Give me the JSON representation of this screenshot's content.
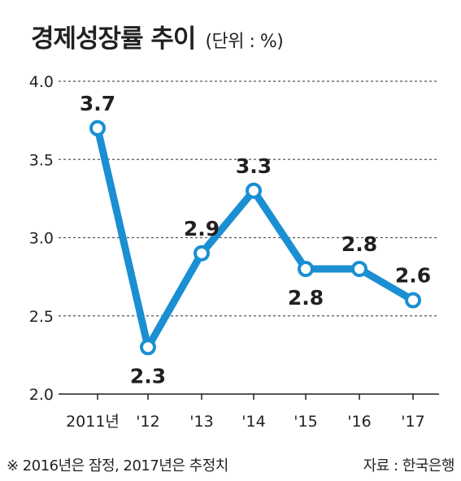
{
  "header": {
    "title": "경제성장률 추이",
    "unit": "(단위 : %)"
  },
  "footer": {
    "note": "※ 2016년은 잠정, 2017년은 추정치",
    "source": "자료 : 한국은행"
  },
  "colors": {
    "line": "#1a8fd2",
    "marker_fill": "#ffffff",
    "grid": "#555555",
    "text": "#231f20"
  },
  "chart_data": {
    "type": "line",
    "title": "경제성장률 추이",
    "ylabel": "",
    "xlabel": "",
    "categories": [
      "2011년",
      "'12",
      "'13",
      "'14",
      "'15",
      "'16",
      "'17"
    ],
    "series": [
      {
        "values": [
          3.7,
          2.3,
          2.9,
          3.3,
          2.8,
          2.8,
          2.6
        ]
      }
    ],
    "data_labels": [
      "3.7",
      "2.3",
      "2.9",
      "3.3",
      "2.8",
      "2.8",
      "2.6"
    ],
    "ylim": [
      2.0,
      4.0
    ],
    "yticks": [
      2.0,
      2.5,
      3.0,
      3.5,
      4.0
    ],
    "ytick_labels": [
      "2.0",
      "2.5",
      "3.0",
      "3.5",
      "4.0"
    ],
    "grid": "horizontal-dashed",
    "legend": "none"
  }
}
